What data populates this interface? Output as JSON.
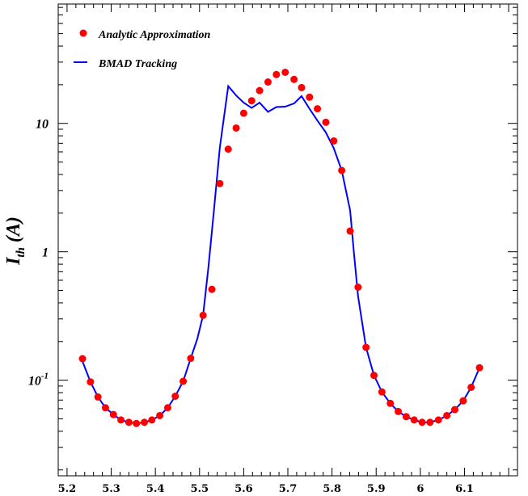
{
  "chart_data": {
    "type": "line",
    "title": "",
    "xlabel": "",
    "ylabel": "I",
    "ylabel_subscript": "th",
    "ylabel_unit": "(A)",
    "yscale": "log",
    "xlim": [
      5.18,
      6.22
    ],
    "ylim": [
      0.018,
      85
    ],
    "x_ticks": [
      5.2,
      5.3,
      5.4,
      5.5,
      5.6,
      5.7,
      5.8,
      5.9,
      6,
      6.1
    ],
    "x_tick_labels": [
      "5.2",
      "5.3",
      "5.4",
      "5.5",
      "5.6",
      "5.7",
      "5.8",
      "5.9",
      "6",
      "6.1"
    ],
    "y_ticks": [
      {
        "value": 0.1,
        "base": "10",
        "exp": "-1"
      },
      {
        "value": 1,
        "base": "1",
        "exp": ""
      },
      {
        "value": 10,
        "base": "10",
        "exp": ""
      }
    ],
    "grid": false,
    "legend_position": "top-left",
    "series": [
      {
        "name": "Analytic Approximation",
        "kind": "scatter",
        "color": "#ff0000",
        "points": [
          [
            5.235,
            0.147
          ],
          [
            5.253,
            0.097
          ],
          [
            5.27,
            0.074
          ],
          [
            5.287,
            0.061
          ],
          [
            5.305,
            0.054
          ],
          [
            5.322,
            0.049
          ],
          [
            5.34,
            0.047
          ],
          [
            5.357,
            0.046
          ],
          [
            5.375,
            0.047
          ],
          [
            5.392,
            0.049
          ],
          [
            5.41,
            0.053
          ],
          [
            5.428,
            0.061
          ],
          [
            5.445,
            0.075
          ],
          [
            5.463,
            0.098
          ],
          [
            5.48,
            0.148
          ],
          [
            5.508,
            0.32
          ],
          [
            5.528,
            0.51
          ],
          [
            5.546,
            3.4
          ],
          [
            5.565,
            6.3
          ],
          [
            5.583,
            9.2
          ],
          [
            5.6,
            12.0
          ],
          [
            5.618,
            15.0
          ],
          [
            5.636,
            18.0
          ],
          [
            5.655,
            21.0
          ],
          [
            5.674,
            24.0
          ],
          [
            5.694,
            25.0
          ],
          [
            5.714,
            22.0
          ],
          [
            5.731,
            19.0
          ],
          [
            5.749,
            16.0
          ],
          [
            5.767,
            13.0
          ],
          [
            5.786,
            10.2
          ],
          [
            5.804,
            7.3
          ],
          [
            5.822,
            4.3
          ],
          [
            5.841,
            1.45
          ],
          [
            5.859,
            0.53
          ],
          [
            5.877,
            0.18
          ],
          [
            5.895,
            0.109
          ],
          [
            5.913,
            0.081
          ],
          [
            5.932,
            0.066
          ],
          [
            5.95,
            0.057
          ],
          [
            5.968,
            0.052
          ],
          [
            5.986,
            0.049
          ],
          [
            6.004,
            0.047
          ],
          [
            6.022,
            0.047
          ],
          [
            6.041,
            0.049
          ],
          [
            6.06,
            0.053
          ],
          [
            6.078,
            0.059
          ],
          [
            6.097,
            0.069
          ],
          [
            6.115,
            0.088
          ],
          [
            6.134,
            0.125
          ]
        ]
      },
      {
        "name": "BMAD Tracking",
        "kind": "line",
        "color": "#0000ff",
        "points": [
          [
            5.235,
            0.14
          ],
          [
            5.253,
            0.097
          ],
          [
            5.27,
            0.074
          ],
          [
            5.287,
            0.061
          ],
          [
            5.305,
            0.054
          ],
          [
            5.322,
            0.049
          ],
          [
            5.34,
            0.047
          ],
          [
            5.357,
            0.046
          ],
          [
            5.375,
            0.047
          ],
          [
            5.392,
            0.049
          ],
          [
            5.41,
            0.053
          ],
          [
            5.428,
            0.061
          ],
          [
            5.445,
            0.075
          ],
          [
            5.463,
            0.098
          ],
          [
            5.48,
            0.148
          ],
          [
            5.495,
            0.21
          ],
          [
            5.508,
            0.32
          ],
          [
            5.52,
            0.75
          ],
          [
            5.532,
            2.0
          ],
          [
            5.546,
            6.5
          ],
          [
            5.565,
            19.5
          ],
          [
            5.583,
            16.5
          ],
          [
            5.6,
            14.5
          ],
          [
            5.618,
            13.2
          ],
          [
            5.636,
            14.5
          ],
          [
            5.655,
            12.3
          ],
          [
            5.674,
            13.4
          ],
          [
            5.694,
            13.5
          ],
          [
            5.714,
            14.3
          ],
          [
            5.731,
            16.3
          ],
          [
            5.749,
            13.0
          ],
          [
            5.767,
            10.5
          ],
          [
            5.786,
            8.5
          ],
          [
            5.804,
            6.4
          ],
          [
            5.822,
            4.3
          ],
          [
            5.841,
            2.1
          ],
          [
            5.85,
            0.95
          ],
          [
            5.859,
            0.45
          ],
          [
            5.877,
            0.18
          ],
          [
            5.895,
            0.109
          ],
          [
            5.913,
            0.081
          ],
          [
            5.932,
            0.066
          ],
          [
            5.95,
            0.057
          ],
          [
            5.968,
            0.052
          ],
          [
            5.986,
            0.049
          ],
          [
            6.004,
            0.047
          ],
          [
            6.022,
            0.047
          ],
          [
            6.041,
            0.049
          ],
          [
            6.06,
            0.053
          ],
          [
            6.078,
            0.059
          ],
          [
            6.097,
            0.069
          ],
          [
            6.115,
            0.088
          ],
          [
            6.134,
            0.125
          ]
        ]
      }
    ]
  }
}
